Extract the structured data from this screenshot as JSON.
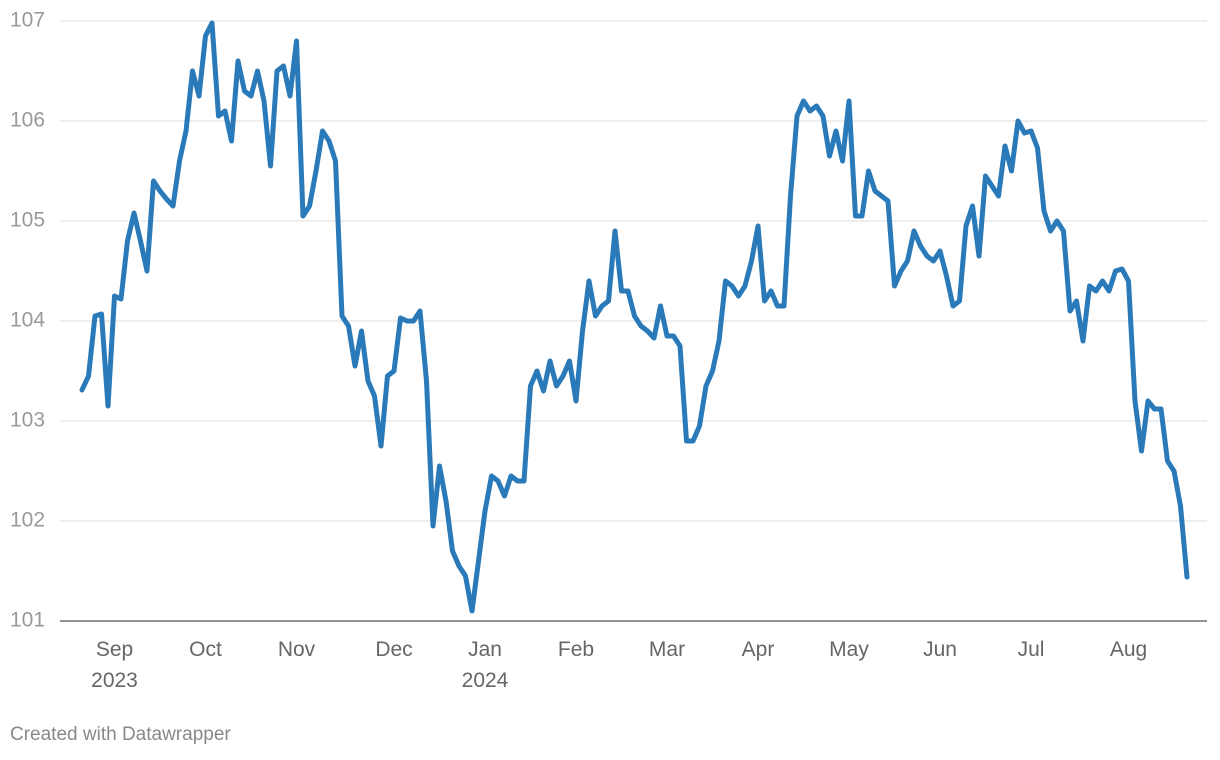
{
  "chart_data": {
    "type": "line",
    "categories": [
      null,
      null,
      null,
      null,
      null,
      "Sep 2023",
      null,
      null,
      null,
      null,
      null,
      null,
      null,
      null,
      null,
      null,
      null,
      null,
      null,
      "Oct",
      null,
      null,
      null,
      null,
      null,
      null,
      null,
      null,
      null,
      null,
      null,
      null,
      null,
      "Nov",
      null,
      null,
      null,
      null,
      null,
      null,
      null,
      null,
      null,
      null,
      null,
      null,
      null,
      null,
      "Dec",
      null,
      null,
      null,
      null,
      null,
      null,
      null,
      null,
      null,
      null,
      null,
      null,
      null,
      "Jan 2024",
      null,
      null,
      null,
      null,
      null,
      null,
      null,
      null,
      null,
      null,
      null,
      null,
      null,
      "Feb",
      null,
      null,
      null,
      null,
      null,
      null,
      null,
      null,
      null,
      null,
      null,
      null,
      null,
      "Mar",
      null,
      null,
      null,
      null,
      null,
      null,
      null,
      null,
      null,
      null,
      null,
      null,
      null,
      "Apr",
      null,
      null,
      null,
      null,
      null,
      null,
      null,
      null,
      null,
      null,
      null,
      null,
      null,
      "May",
      null,
      null,
      null,
      null,
      null,
      null,
      null,
      null,
      null,
      null,
      null,
      null,
      null,
      "Jun",
      null,
      null,
      null,
      null,
      null,
      null,
      null,
      null,
      null,
      null,
      null,
      null,
      null,
      "Jul",
      null,
      null,
      null,
      null,
      null,
      null,
      null,
      null,
      null,
      null,
      null,
      null,
      null,
      null,
      "Aug",
      null,
      null,
      null,
      null,
      null,
      null,
      null,
      null,
      null
    ],
    "values": [
      103.31,
      103.45,
      104.05,
      104.07,
      103.15,
      104.25,
      104.22,
      104.8,
      105.08,
      104.8,
      104.5,
      105.4,
      105.3,
      105.22,
      105.15,
      105.6,
      105.9,
      106.5,
      106.25,
      106.85,
      106.98,
      106.05,
      106.1,
      105.8,
      106.6,
      106.3,
      106.25,
      106.5,
      106.2,
      105.55,
      106.5,
      106.55,
      106.25,
      106.8,
      105.05,
      105.15,
      105.5,
      105.9,
      105.8,
      105.6,
      104.05,
      103.95,
      103.55,
      103.9,
      103.4,
      103.25,
      102.75,
      103.45,
      103.5,
      104.03,
      104.0,
      104.0,
      104.1,
      103.4,
      101.95,
      102.55,
      102.2,
      101.7,
      101.55,
      101.45,
      101.1,
      101.6,
      102.1,
      102.45,
      102.4,
      102.25,
      102.45,
      102.4,
      102.4,
      103.35,
      103.5,
      103.3,
      103.6,
      103.35,
      103.45,
      103.6,
      103.2,
      103.9,
      104.4,
      104.05,
      104.15,
      104.2,
      104.9,
      104.3,
      104.3,
      104.05,
      103.95,
      103.9,
      103.83,
      104.15,
      103.85,
      103.85,
      103.75,
      102.8,
      102.8,
      102.95,
      103.35,
      103.5,
      103.8,
      104.4,
      104.35,
      104.25,
      104.35,
      104.6,
      104.95,
      104.2,
      104.3,
      104.15,
      104.15,
      105.25,
      106.05,
      106.2,
      106.1,
      106.15,
      106.05,
      105.65,
      105.9,
      105.6,
      106.2,
      105.05,
      105.05,
      105.5,
      105.3,
      105.25,
      105.2,
      104.35,
      104.5,
      104.6,
      104.9,
      104.75,
      104.65,
      104.6,
      104.7,
      104.45,
      104.15,
      104.2,
      104.95,
      105.15,
      104.65,
      105.45,
      105.35,
      105.25,
      105.75,
      105.5,
      106.0,
      105.88,
      105.9,
      105.73,
      105.1,
      104.9,
      105.0,
      104.9,
      104.1,
      104.2,
      103.8,
      104.35,
      104.3,
      104.4,
      104.3,
      104.5,
      104.52,
      104.4,
      103.2,
      102.7,
      103.2,
      103.12,
      103.12,
      102.6,
      102.5,
      102.15,
      101.44
    ],
    "color": "#2a7ab9",
    "ylim": [
      101,
      107
    ],
    "yticks": [
      101,
      102,
      103,
      104,
      105,
      106,
      107
    ],
    "grid": true,
    "credit": "Created with Datawrapper"
  }
}
